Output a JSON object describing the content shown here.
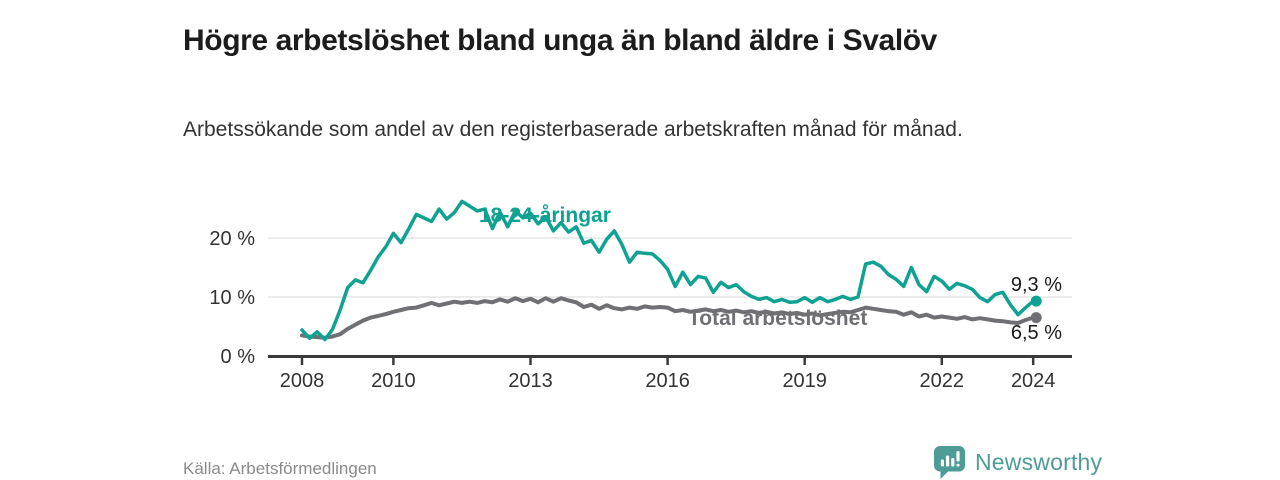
{
  "header": {
    "title": "Högre arbetslöshet bland unga än bland äldre i Svalöv",
    "subtitle": "Arbetssökande som andel av den registerbaserade arbetskraften månad för månad."
  },
  "footer": {
    "source": "Källa: Arbetsförmedlingen",
    "brand_name": "Newsworthy",
    "brand_color": "#4e9c95",
    "logo_icon": "newsworthy-speech-bubble-bar-chart-icon"
  },
  "chart_data": {
    "type": "line",
    "title": "Högre arbetslöshet bland unga än bland äldre i Svalöv",
    "subtitle": "Arbetssökande som andel av den registerbaserade arbetskraften månad för månad",
    "unit": "percent",
    "grid": "horizontal",
    "legend_position": "inline-labels",
    "x_axis": {
      "range": [
        2007.26,
        2024.85
      ],
      "ticks": [
        {
          "value": 2008,
          "label": "2008"
        },
        {
          "value": 2010,
          "label": "2010"
        },
        {
          "value": 2013,
          "label": "2013"
        },
        {
          "value": 2016,
          "label": "2016"
        },
        {
          "value": 2019,
          "label": "2019"
        },
        {
          "value": 2022,
          "label": "2022"
        },
        {
          "value": 2024,
          "label": "2024"
        }
      ]
    },
    "y_axis": {
      "range": [
        0,
        27.5
      ],
      "ticks": [
        {
          "value": 0,
          "label": "0 %"
        },
        {
          "value": 10,
          "label": "10 %"
        },
        {
          "value": 20,
          "label": "20 %"
        }
      ]
    },
    "sampling": {
      "start_year": 2008.0,
      "step_years": 0.16667,
      "note": "values are percent of labour force, sampled every 2 months"
    },
    "series": [
      {
        "name": "18-24-åringar",
        "color": "#0fa191",
        "line_width": 3.5,
        "end_value": 9.3,
        "end_label": "9,3 %",
        "values": [
          4.4,
          3.0,
          4.1,
          2.8,
          4.5,
          7.8,
          11.6,
          12.9,
          12.4,
          14.5,
          16.8,
          18.5,
          20.8,
          19.2,
          21.5,
          24.0,
          23.4,
          22.8,
          24.9,
          23.2,
          24.3,
          26.2,
          25.4,
          24.6,
          24.9,
          21.6,
          24.4,
          21.9,
          24.6,
          23.4,
          24.2,
          22.4,
          23.6,
          21.2,
          22.6,
          21.0,
          21.9,
          19.1,
          19.6,
          17.6,
          19.8,
          21.2,
          18.9,
          15.9,
          17.6,
          17.4,
          17.3,
          16.2,
          14.7,
          11.8,
          14.2,
          12.1,
          13.5,
          13.2,
          10.8,
          12.5,
          11.6,
          12.1,
          10.9,
          10.1,
          9.6,
          9.9,
          9.2,
          9.6,
          9.1,
          9.2,
          9.9,
          9.1,
          9.9,
          9.2,
          9.6,
          10.1,
          9.6,
          10.0,
          15.6,
          15.9,
          15.2,
          13.8,
          13.0,
          11.8,
          15.0,
          12.1,
          10.9,
          13.5,
          12.7,
          11.3,
          12.3,
          11.9,
          11.3,
          9.9,
          9.2,
          10.4,
          10.8,
          8.7,
          7.0,
          8.2,
          9.3
        ]
      },
      {
        "name": "Total arbetslöshet",
        "color": "#6f6f74",
        "line_width": 4,
        "end_value": 6.5,
        "end_label": "6,5 %",
        "values": [
          3.5,
          3.3,
          3.2,
          3.1,
          3.3,
          3.7,
          4.6,
          5.3,
          6.0,
          6.5,
          6.8,
          7.1,
          7.5,
          7.8,
          8.1,
          8.2,
          8.6,
          9.0,
          8.6,
          8.9,
          9.2,
          9.0,
          9.2,
          9.0,
          9.3,
          9.1,
          9.6,
          9.2,
          9.8,
          9.3,
          9.7,
          9.1,
          9.8,
          9.2,
          9.8,
          9.4,
          9.1,
          8.3,
          8.7,
          8.0,
          8.6,
          8.1,
          7.9,
          8.2,
          8.0,
          8.4,
          8.2,
          8.3,
          8.2,
          7.6,
          7.8,
          7.5,
          7.7,
          7.9,
          7.6,
          7.8,
          7.5,
          7.7,
          7.4,
          7.6,
          7.3,
          7.5,
          7.2,
          7.4,
          7.1,
          7.3,
          7.0,
          7.2,
          6.9,
          7.1,
          7.3,
          7.5,
          7.4,
          7.8,
          8.2,
          8.0,
          7.8,
          7.6,
          7.5,
          7.0,
          7.4,
          6.7,
          7.0,
          6.5,
          6.7,
          6.5,
          6.3,
          6.6,
          6.2,
          6.4,
          6.2,
          6.0,
          5.9,
          5.7,
          5.6,
          6.1,
          6.5
        ]
      }
    ],
    "colors": {
      "gridline": "#d9d9d9",
      "axis": "#3a3a3a",
      "axis_text": "#333333",
      "value_label_text": "#1a1a1a"
    }
  }
}
